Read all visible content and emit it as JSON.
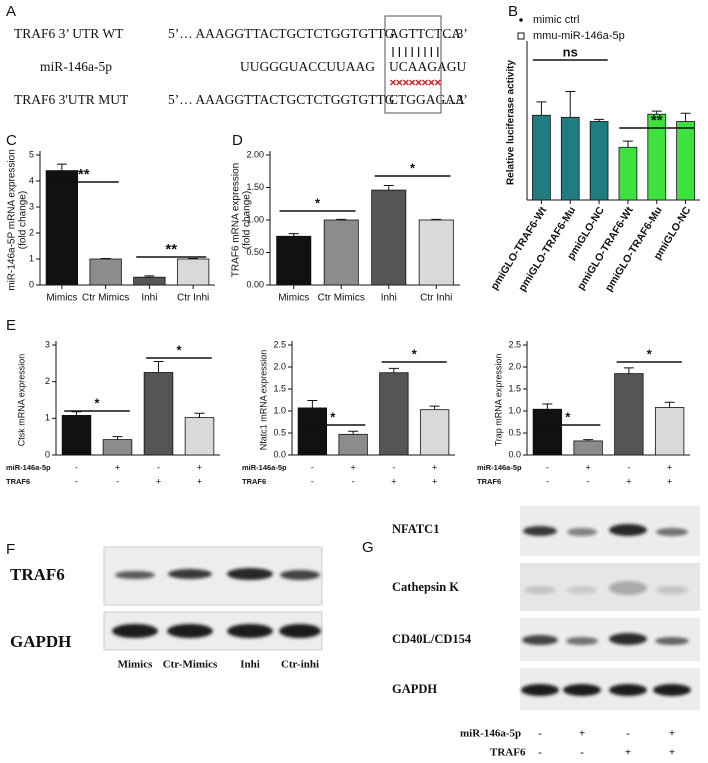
{
  "sequence": {
    "panel": "A",
    "rows": [
      {
        "label": "TRAF6 3’ UTR WT",
        "seq": "5’… AAAGGTTACTGCTCTGGTGTTG",
        "site": "AGTTCTCA",
        "end": "…3’"
      },
      {
        "label": "miR-146a-5p",
        "seq": "UUGGGUACCUUAAG",
        "site": "UCAAGAGU"
      },
      {
        "label": "TRAF6 3'UTR MUT",
        "seq": "5’… AAAGGTTACTGCTCTGGTGTTG",
        "site": "CTGGAGAA",
        "end": "…3’"
      }
    ]
  },
  "chart_data": [
    {
      "panel": "B",
      "type": "bar",
      "ylabel": [
        "Relative luciferase activity"
      ],
      "categories": [
        "pmiGLO-TRAF6-Wt",
        "pmiGLO-TRAF6-Mu",
        "pmiGLO-NC",
        "pmiGLO-TRAF6-Wt",
        "pmiGLO-TRAF6-Mu",
        "pmiGLO-NC"
      ],
      "series": [
        {
          "name": "mimic ctrl",
          "marker": "circle",
          "color": "#1f7c80",
          "values": [
            0.82,
            0.8,
            0.76,
            null,
            null,
            null
          ],
          "errors": [
            0.13,
            0.25,
            0.02,
            null,
            null,
            null
          ]
        },
        {
          "name": "mmu-miR-146a-5p",
          "marker": "square",
          "color": "#3de23d",
          "values": [
            null,
            null,
            null,
            0.51,
            0.83,
            0.76
          ],
          "errors": [
            null,
            null,
            null,
            0.06,
            0.03,
            0.08
          ]
        }
      ],
      "ylim": [
        0,
        1.5
      ],
      "annotations": [
        "ns",
        "**"
      ]
    },
    {
      "panel": "C",
      "type": "bar",
      "ylabel": [
        "miR-146a-5P mRNA expression",
        "(fold change)"
      ],
      "categories": [
        "Mimics",
        "Ctr Mimics",
        "Inhi",
        "Ctr Inhi"
      ],
      "values": [
        4.4,
        1,
        0.3,
        1
      ],
      "errors": [
        0.25,
        0.02,
        0.05,
        0.02
      ],
      "colors": [
        "#111111",
        "#8c8c8c",
        "#555555",
        "#d9d9d9"
      ],
      "ylim": [
        0,
        5
      ],
      "yticks": [
        0,
        1,
        2,
        3,
        4,
        5
      ],
      "annotations": [
        "**",
        "**"
      ]
    },
    {
      "panel": "D",
      "type": "bar",
      "ylabel": [
        "TRAF6 mRNA expression",
        "(fold change)"
      ],
      "categories": [
        "Mimics",
        "Ctr Mimics",
        "Inhi",
        "Ctr Inhi"
      ],
      "values": [
        0.75,
        1,
        1.46,
        1
      ],
      "errors": [
        0.04,
        0.01,
        0.07,
        0.01
      ],
      "colors": [
        "#111111",
        "#8c8c8c",
        "#555555",
        "#d9d9d9"
      ],
      "ylim": [
        0,
        2
      ],
      "yticks": [
        {
          "value": 0,
          "label": "0.00"
        },
        {
          "value": 0.5,
          "label": "0.50"
        },
        {
          "value": 1,
          "label": "1.00"
        },
        {
          "value": 1.5,
          "label": "1.50"
        },
        {
          "value": 2,
          "label": "2.00"
        }
      ],
      "annotations": [
        "*",
        "*"
      ]
    },
    {
      "panel": "E",
      "type": "bar",
      "ylabel": [
        "Ctsk mRNA expression"
      ],
      "values": [
        1.08,
        0.42,
        2.25,
        1.02
      ],
      "errors": [
        0.1,
        0.08,
        0.3,
        0.12
      ],
      "colors": [
        "#111111",
        "#8c8c8c",
        "#555555",
        "#d9d9d9"
      ],
      "ylim": [
        0,
        3
      ],
      "yticks": [
        0,
        1,
        2,
        3
      ],
      "conditions": [
        {
          "name": "miR-146a-5p",
          "values": [
            "-",
            "+",
            "-",
            "+"
          ]
        },
        {
          "name": "TRAF6",
          "values": [
            "-",
            "-",
            "+",
            "+"
          ]
        }
      ],
      "annotations": [
        "*",
        "*"
      ]
    },
    {
      "type": "bar",
      "ylabel": [
        "Nfatc1 mRNA expression"
      ],
      "values": [
        1.07,
        0.47,
        1.87,
        1.03
      ],
      "errors": [
        0.17,
        0.07,
        0.1,
        0.08
      ],
      "colors": [
        "#111111",
        "#8c8c8c",
        "#555555",
        "#d9d9d9"
      ],
      "ylim": [
        0,
        2.5
      ],
      "yticks": [
        {
          "value": 0,
          "label": "0.0"
        },
        0.5,
        {
          "value": 1,
          "label": "1.0"
        },
        1.5,
        {
          "value": 2,
          "label": "2.0"
        },
        2.5
      ],
      "conditions": [
        {
          "name": "miR-146a-5p",
          "values": [
            "-",
            "+",
            "-",
            "+"
          ]
        },
        {
          "name": "TRAF6",
          "values": [
            "-",
            "-",
            "+",
            "+"
          ]
        }
      ],
      "annotations": [
        "*",
        "*"
      ]
    },
    {
      "type": "bar",
      "ylabel": [
        "Trap mRNA expression"
      ],
      "values": [
        1.04,
        0.32,
        1.85,
        1.08
      ],
      "errors": [
        0.12,
        0.03,
        0.13,
        0.12
      ],
      "colors": [
        "#111111",
        "#8c8c8c",
        "#555555",
        "#d9d9d9"
      ],
      "ylim": [
        0,
        2.5
      ],
      "yticks": [
        {
          "value": 0,
          "label": "0.0"
        },
        0.5,
        {
          "value": 1,
          "label": "1.0"
        },
        1.5,
        {
          "value": 2,
          "label": "2.0"
        },
        2.5
      ],
      "conditions": [
        {
          "name": "miR-146a-5p",
          "values": [
            "-",
            "+",
            "-",
            "+"
          ]
        },
        {
          "name": "TRAF6",
          "values": [
            "-",
            "-",
            "+",
            "+"
          ]
        }
      ],
      "annotations": [
        "*",
        "*"
      ]
    }
  ],
  "blot_f": {
    "panel": "F",
    "proteins": [
      "TRAF6",
      "GAPDH"
    ],
    "lanes": [
      "Mimics",
      "Ctr-Mimics",
      "Inhi",
      "Ctr-inhi"
    ]
  },
  "blot_g": {
    "panel": "G",
    "proteins": [
      "NFATC1",
      "Cathepsin K",
      "CD40L/CD154",
      "GAPDH"
    ],
    "conditions": [
      {
        "name": "miR-146a-5p",
        "values": [
          "-",
          "+",
          "-",
          "+"
        ]
      },
      {
        "name": "TRAF6",
        "values": [
          "-",
          "-",
          "+",
          "+"
        ]
      }
    ]
  }
}
